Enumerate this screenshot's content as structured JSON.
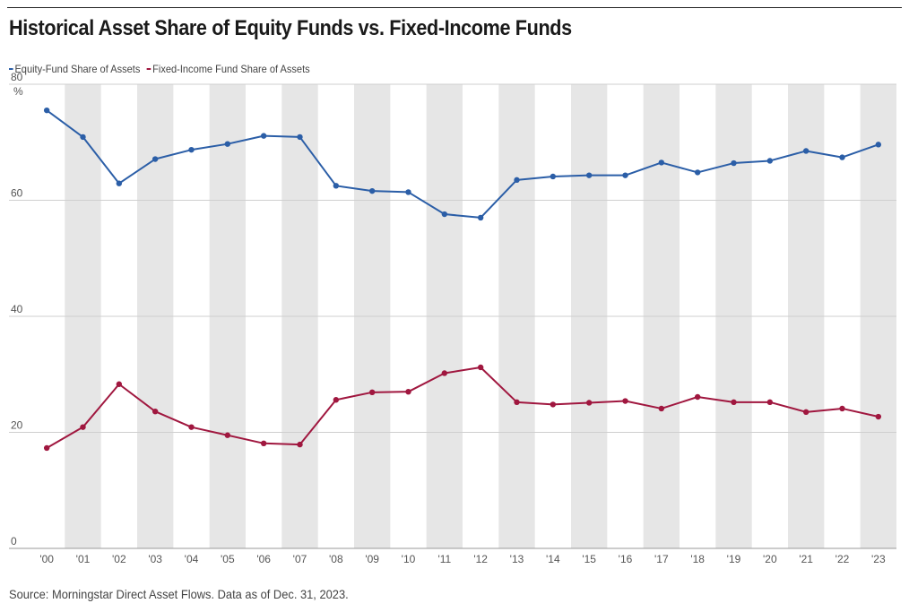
{
  "chart_data": {
    "type": "line",
    "title": "Historical Asset Share of Equity Funds vs. Fixed-Income Funds",
    "source": "Source: Morningstar Direct Asset Flows. Data as of Dec. 31, 2023.",
    "categories": [
      "'00",
      "'01",
      "'02",
      "'03",
      "'04",
      "'05",
      "'06",
      "'07",
      "'08",
      "'09",
      "'10",
      "'11",
      "'12",
      "'13",
      "'14",
      "'15",
      "'16",
      "'17",
      "'18",
      "'19",
      "'20",
      "'21",
      "'22",
      "'23"
    ],
    "series": [
      {
        "name": "Equity-Fund Share of Assets",
        "color": "#2b5ea7",
        "values": [
          75.5,
          70.9,
          62.9,
          67.1,
          68.7,
          69.7,
          71.1,
          70.9,
          62.5,
          61.6,
          61.4,
          57.6,
          57.0,
          63.5,
          64.1,
          64.3,
          64.3,
          66.5,
          64.8,
          66.4,
          66.8,
          68.5,
          67.4,
          69.6
        ]
      },
      {
        "name": "Fixed-Income Fund Share of Assets",
        "color": "#a0173f",
        "values": [
          17.3,
          20.9,
          28.3,
          23.6,
          20.9,
          19.5,
          18.1,
          17.9,
          25.6,
          26.9,
          27.0,
          30.2,
          31.2,
          25.2,
          24.8,
          25.1,
          25.4,
          24.1,
          26.1,
          25.2,
          25.2,
          23.5,
          24.1,
          22.7
        ]
      }
    ],
    "yticks": [
      "80",
      "60",
      "40",
      "20",
      "0"
    ],
    "yunit": "%",
    "ylim": [
      0,
      80
    ],
    "grid": true,
    "legend": "top-left"
  }
}
